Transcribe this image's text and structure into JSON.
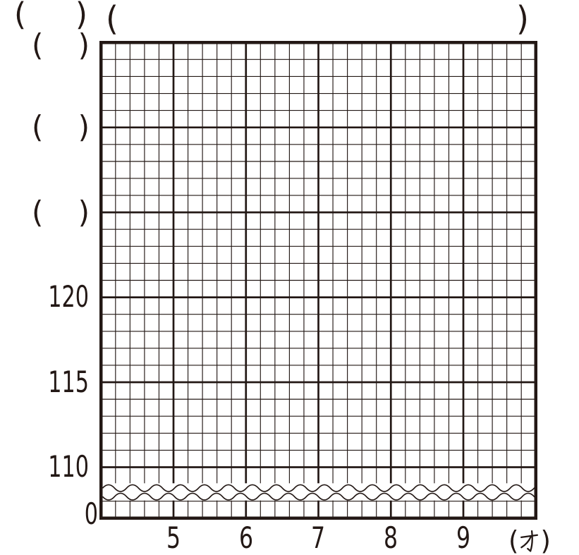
{
  "colors": {
    "ink": "#231815",
    "background": "#ffffff"
  },
  "header": {
    "unit_blank": {
      "open": "(",
      "close": ")"
    },
    "title_blank": {
      "open": "(",
      "close": ")"
    }
  },
  "y_axis": {
    "blank_ticks": [
      {
        "open": "(",
        "close": ")"
      },
      {
        "open": "(",
        "close": ")"
      },
      {
        "open": "(",
        "close": ")"
      }
    ],
    "value_ticks": [
      "120",
      "115",
      "110"
    ],
    "origin_label": "0"
  },
  "x_axis": {
    "ticks": [
      "5",
      "6",
      "7",
      "8",
      "9"
    ],
    "unit": {
      "open": "(",
      "kanji": "才",
      "close": ")"
    }
  },
  "chart_data": {
    "type": "line",
    "title": "",
    "xlabel": "(才)",
    "ylabel": "",
    "x_ticks": [
      5,
      6,
      7,
      8,
      9
    ],
    "y_ticks_labeled": [
      0,
      110,
      115,
      120
    ],
    "y_blank_tick_count": 3,
    "y_major_step": 5,
    "minor_cells_per_major": 5,
    "grid_columns": 30,
    "grid_rows": 28,
    "axis_break_between": [
      0,
      110
    ],
    "grid": "on",
    "legend": "none",
    "series": []
  }
}
